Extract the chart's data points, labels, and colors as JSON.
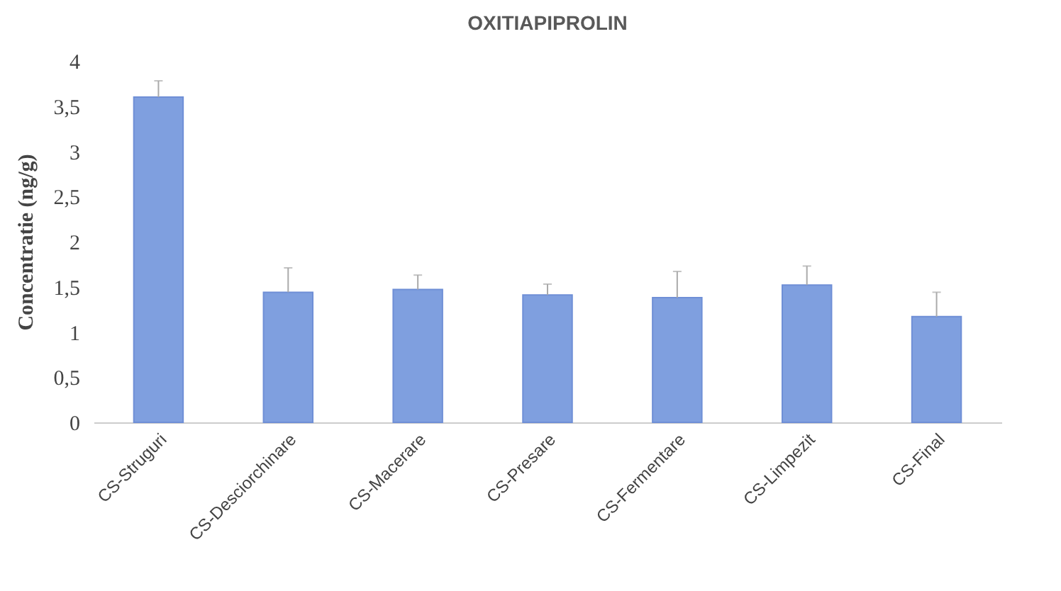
{
  "chart_data": {
    "type": "bar",
    "title": "OXITIAPIPROLIN",
    "ylabel": "Concentratie (ng/g)",
    "categories": [
      "CS-Struguri",
      "CS-Desciorchinare",
      "CS-Macerare",
      "CS-Presare",
      "CS-Fermentare",
      "CS-Limpezit",
      "CS-Final"
    ],
    "values": [
      3.6,
      1.44,
      1.47,
      1.41,
      1.38,
      1.52,
      1.17
    ],
    "errors": [
      [
        3.6,
        3.78
      ],
      [
        1.44,
        1.71
      ],
      [
        1.47,
        1.63
      ],
      [
        1.41,
        1.53
      ],
      [
        1.38,
        1.67
      ],
      [
        1.52,
        1.73
      ],
      [
        1.17,
        1.44
      ]
    ],
    "color": "#7f9fdf",
    "ylim": [
      0,
      4
    ],
    "yticks": [
      0,
      {
        "value": 0.5,
        "label": "0,5"
      },
      1,
      {
        "value": 1.5,
        "label": "1,5"
      },
      2,
      {
        "value": 2.5,
        "label": "2,5"
      },
      3,
      {
        "value": 3.5,
        "label": "3,5"
      },
      4
    ],
    "grid": false
  }
}
